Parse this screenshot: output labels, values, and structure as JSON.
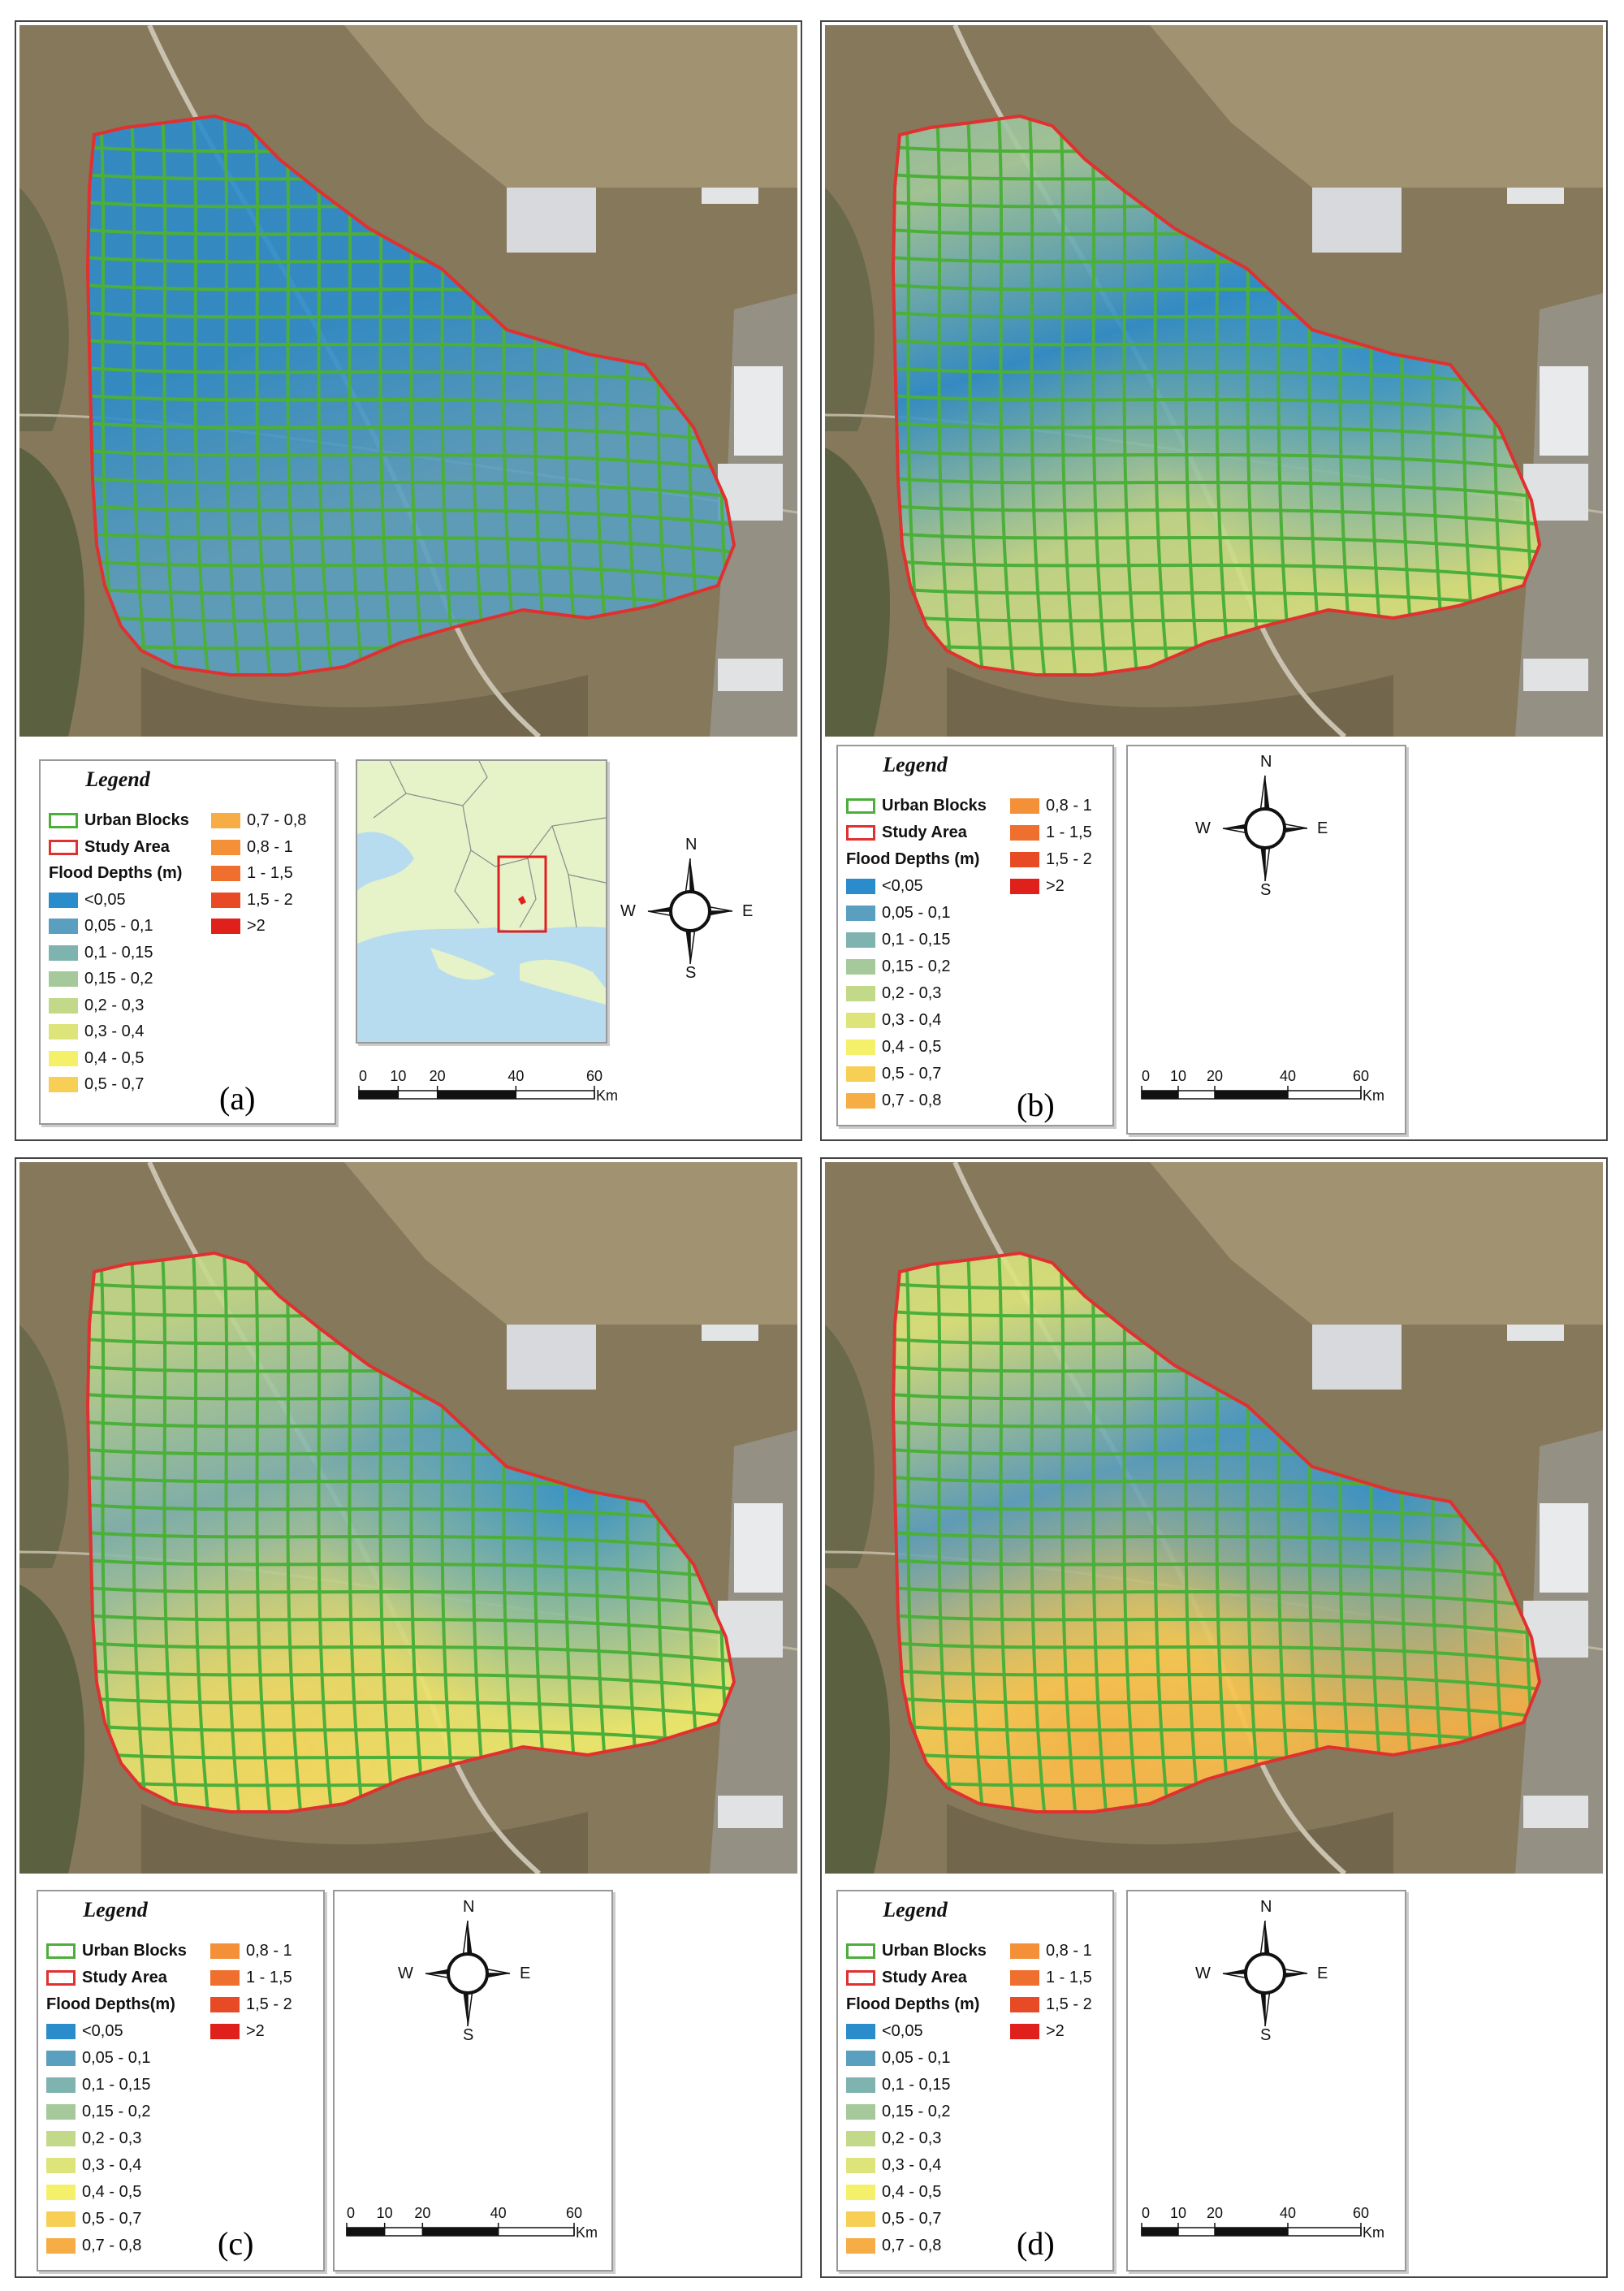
{
  "panels": [
    {
      "id": "a",
      "label": "(a)",
      "scenario": 0
    },
    {
      "id": "b",
      "label": "(b)",
      "scenario": 1
    },
    {
      "id": "c",
      "label": "(c)",
      "scenario": 2
    },
    {
      "id": "d",
      "label": "(d)",
      "scenario": 3
    }
  ],
  "legend_a": {
    "title": "Legend",
    "urban_blocks": "Urban Blocks",
    "study_area": "Study Area",
    "flood_depths": "Flood Depths (m)",
    "col1": [
      "<0,05",
      "0,05 - 0,1",
      "0,1 - 0,15",
      "0,15 - 0,2",
      "0,2 - 0,3",
      "0,3 - 0,4",
      "0,4 - 0,5",
      "0,5 - 0,7"
    ],
    "col2": [
      "0,7 - 0,8",
      "0,8 - 1",
      "1 - 1,5",
      "1,5 - 2",
      ">2"
    ]
  },
  "legend_b": {
    "title": "Legend",
    "urban_blocks": "Urban Blocks",
    "study_area": "Study Area",
    "flood_depths": "Flood Depths (m)",
    "col1": [
      "<0,05",
      "0,05 - 0,1",
      "0,1 - 0,15",
      "0,15 - 0,2",
      "0,2 - 0,3",
      "0,3 - 0,4",
      "0,4 - 0,5",
      "0,5 - 0,7",
      "0,7 - 0,8"
    ],
    "col2": [
      "0,8 - 1",
      "1 - 1,5",
      "1,5 - 2",
      ">2"
    ]
  },
  "legend_c": {
    "title": "Legend",
    "urban_blocks": "Urban Blocks",
    "study_area": "Study Area",
    "flood_depths": "Flood Depths(m)",
    "col1": [
      "<0,05",
      "0,05 - 0,1",
      "0,1 - 0,15",
      "0,15 - 0,2",
      "0,2 - 0,3",
      "0,3 - 0,4",
      "0,4 - 0,5",
      "0,5 - 0,7",
      "0,7 - 0,8"
    ],
    "col2": [
      "0,8 - 1",
      "1 - 1,5",
      "1,5 - 2",
      ">2"
    ]
  },
  "legend_d": {
    "title": "Legend",
    "urban_blocks": "Urban Blocks",
    "study_area": "Study Area",
    "flood_depths": "Flood Depths (m)",
    "col1": [
      "<0,05",
      "0,05 - 0,1",
      "0,1 - 0,15",
      "0,15 - 0,2",
      "0,2 - 0,3",
      "0,3 - 0,4",
      "0,4 - 0,5",
      "0,5 - 0,7",
      "0,7 - 0,8"
    ],
    "col2": [
      "0,8 - 1",
      "1 - 1,5",
      "1,5 - 2",
      ">2"
    ]
  },
  "class_colors": {
    "<0,05": "#2b8ccc",
    "0,05 - 0,1": "#5a9fc0",
    "0,1 - 0,15": "#7fb3b0",
    "0,15 - 0,2": "#a5c99a",
    "0,2 - 0,3": "#c3d98a",
    "0,3 - 0,4": "#dde57a",
    "0,4 - 0,5": "#f5f06a",
    "0,5 - 0,7": "#f8cf55",
    "0,7 - 0,8": "#f6ad45",
    "0,8 - 1": "#f39038",
    "1 - 1,5": "#ee6f2e",
    "1,5 - 2": "#e84a25",
    ">2": "#e0201b"
  },
  "symbols": {
    "urban_blocks_color": "#4caf3a",
    "study_area_color": "#e03030"
  },
  "compass": {
    "n": "N",
    "s": "S",
    "e": "E",
    "w": "W"
  },
  "scale": {
    "ticks": [
      "0",
      "10",
      "20",
      "40",
      "60"
    ],
    "unit": "Km"
  }
}
